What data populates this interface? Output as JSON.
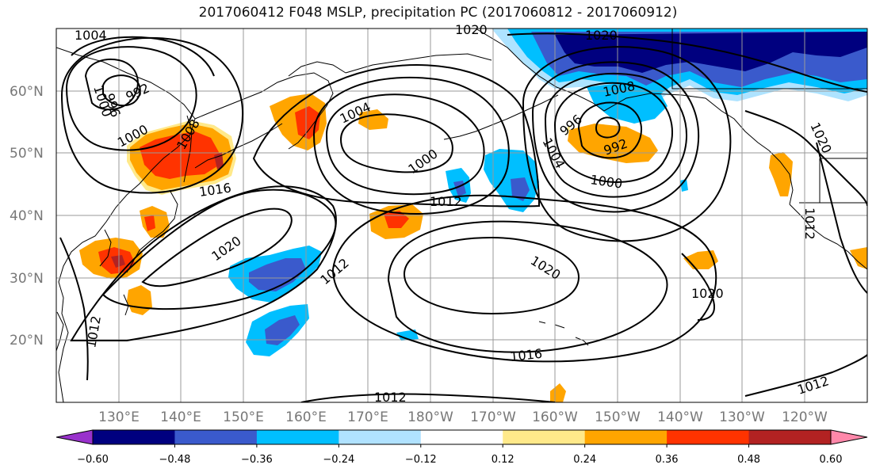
{
  "title": "2017060412 F048 MSLP, precipitation PC (2017060812 - 2017060912)",
  "latitude_labels": [
    "60°N",
    "50°N",
    "40°N",
    "30°N",
    "20°N"
  ],
  "longitude_labels": [
    "130°E",
    "140°E",
    "150°E",
    "160°E",
    "170°E",
    "180°W",
    "170°W",
    "160°W",
    "150°W",
    "140°W",
    "130°W",
    "120°W"
  ],
  "isobar_labels": [
    "1004",
    "1020",
    "1020",
    "1000",
    "996",
    "992",
    "1000",
    "1008",
    "1016",
    "1004",
    "1000",
    "1012",
    "1004",
    "996",
    "992",
    "1000",
    "1008",
    "1020",
    "1012",
    "1020",
    "1020",
    "1016",
    "1012",
    "1012",
    "1012",
    "1012",
    "1020"
  ],
  "colorbar": {
    "ticks": [
      "−0.60",
      "−0.48",
      "−0.36",
      "−0.24",
      "−0.12",
      "0.12",
      "0.24",
      "0.36",
      "0.48",
      "0.60"
    ],
    "colors": [
      "#00007f",
      "#3a5acc",
      "#00bfff",
      "#b0e2ff",
      "#ffffff",
      "#ffe98a",
      "#ffa500",
      "#ff3300",
      "#b22222"
    ],
    "under_color": "#9932cc",
    "over_color": "#ff88aa"
  }
}
